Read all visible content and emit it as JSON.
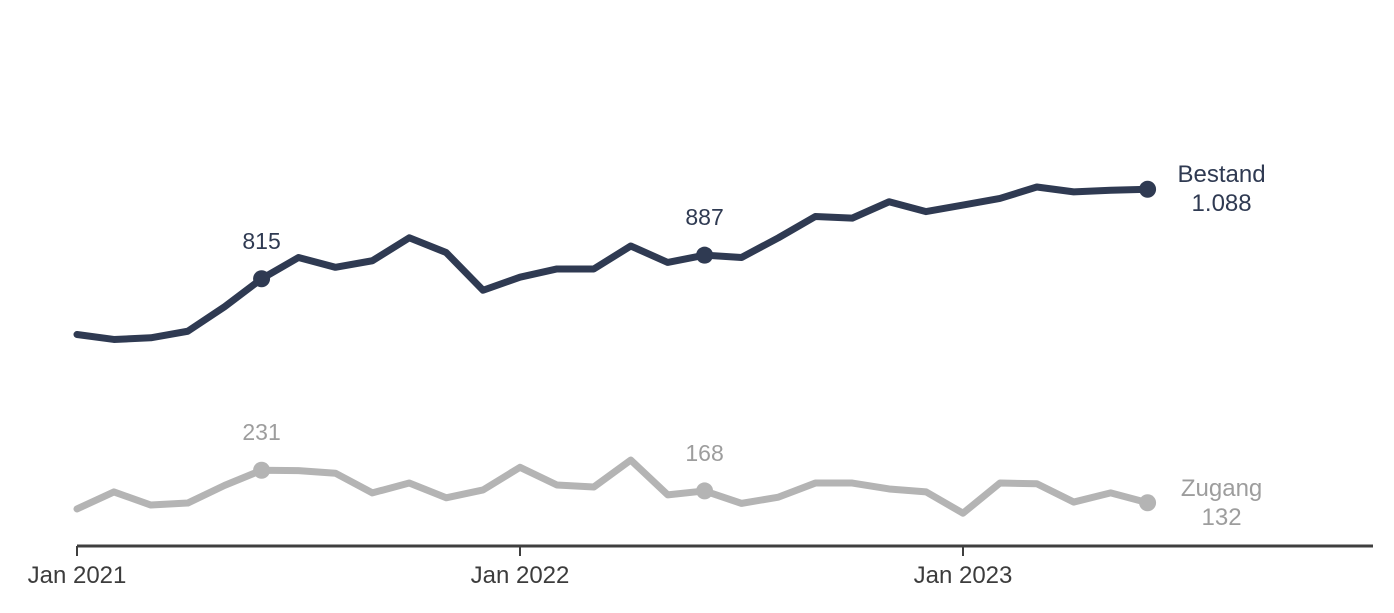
{
  "chart_data": {
    "type": "line",
    "title": "",
    "xlabel": "",
    "ylabel": "",
    "legend_position": "right-of-line-end",
    "grid": false,
    "y_axis_visible": false,
    "baseline_value": 0,
    "x_unit": "month",
    "x_range": [
      "Jan 2021",
      "Jun 2023"
    ],
    "x_ticks": [
      {
        "index": 0,
        "label": "Jan 2021"
      },
      {
        "index": 12,
        "label": "Jan 2022"
      },
      {
        "index": 24,
        "label": "Jan 2023"
      }
    ],
    "axis_color": "#3f3f3f",
    "axis_text_color": "#3c3c3c",
    "series": [
      {
        "name": "Bestand",
        "color": "#2f3a52",
        "label_color": "#2f3a52",
        "values": [
          645,
          630,
          635,
          655,
          730,
          815,
          880,
          850,
          870,
          940,
          895,
          780,
          820,
          845,
          845,
          915,
          865,
          887,
          880,
          940,
          1005,
          1000,
          1050,
          1020,
          1040,
          1060,
          1095,
          1080,
          1085,
          1088
        ],
        "point_labels": [
          {
            "index": 5,
            "text": "815"
          },
          {
            "index": 17,
            "text": "887"
          }
        ],
        "end_label": {
          "name": "Bestand",
          "value": "1.088"
        }
      },
      {
        "name": "Zugang",
        "color": "#b4b4b4",
        "label_color": "#9d9d9d",
        "values": [
          113,
          165,
          125,
          131,
          185,
          231,
          230,
          222,
          162,
          192,
          147,
          171,
          240,
          186,
          180,
          262,
          156,
          168,
          130,
          149,
          192,
          192,
          174,
          165,
          100,
          192,
          190,
          134,
          162,
          132
        ],
        "point_labels": [
          {
            "index": 5,
            "text": "231"
          },
          {
            "index": 17,
            "text": "168"
          }
        ],
        "end_label": {
          "name": "Zugang",
          "value": "132"
        }
      }
    ]
  }
}
